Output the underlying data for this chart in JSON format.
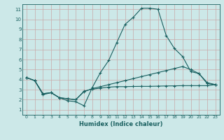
{
  "xlabel": "Humidex (Indice chaleur)",
  "bg_color": "#cce8e8",
  "grid_color": "#c8a8a8",
  "line_color": "#1a6060",
  "xlim": [
    -0.5,
    23.5
  ],
  "ylim": [
    0.5,
    11.5
  ],
  "xticks": [
    0,
    1,
    2,
    3,
    4,
    5,
    6,
    7,
    8,
    9,
    10,
    11,
    12,
    13,
    14,
    15,
    16,
    17,
    18,
    19,
    20,
    21,
    22,
    23
  ],
  "yticks": [
    1,
    2,
    3,
    4,
    5,
    6,
    7,
    8,
    9,
    10,
    11
  ],
  "line1_x": [
    0,
    1,
    2,
    3,
    4,
    5,
    6,
    7,
    8,
    9,
    10,
    11,
    12,
    13,
    14,
    15,
    16,
    17,
    18,
    19,
    20,
    21,
    22,
    23
  ],
  "line1_y": [
    4.2,
    3.9,
    2.5,
    2.7,
    2.2,
    1.9,
    1.8,
    1.4,
    3.2,
    4.7,
    5.9,
    7.7,
    9.5,
    10.2,
    11.1,
    11.1,
    11.0,
    8.4,
    7.1,
    6.3,
    4.8,
    4.6,
    3.7,
    3.5
  ],
  "line2_x": [
    0,
    1,
    2,
    3,
    4,
    5,
    6,
    7,
    8,
    9,
    10,
    11,
    12,
    13,
    14,
    15,
    16,
    17,
    18,
    19,
    20,
    21,
    22,
    23
  ],
  "line2_y": [
    4.2,
    3.9,
    2.6,
    2.7,
    2.2,
    2.1,
    2.0,
    2.8,
    3.1,
    3.3,
    3.5,
    3.7,
    3.9,
    4.1,
    4.3,
    4.5,
    4.7,
    4.9,
    5.1,
    5.3,
    5.0,
    4.6,
    3.6,
    3.5
  ],
  "line3_x": [
    0,
    1,
    2,
    3,
    4,
    5,
    6,
    7,
    8,
    9,
    10,
    11,
    12,
    13,
    14,
    15,
    16,
    17,
    18,
    19,
    20,
    21,
    22,
    23
  ],
  "line3_y": [
    4.2,
    3.9,
    2.6,
    2.7,
    2.2,
    2.1,
    2.0,
    2.85,
    3.05,
    3.15,
    3.25,
    3.3,
    3.3,
    3.32,
    3.33,
    3.33,
    3.35,
    3.37,
    3.38,
    3.4,
    3.4,
    3.4,
    3.4,
    3.5
  ]
}
